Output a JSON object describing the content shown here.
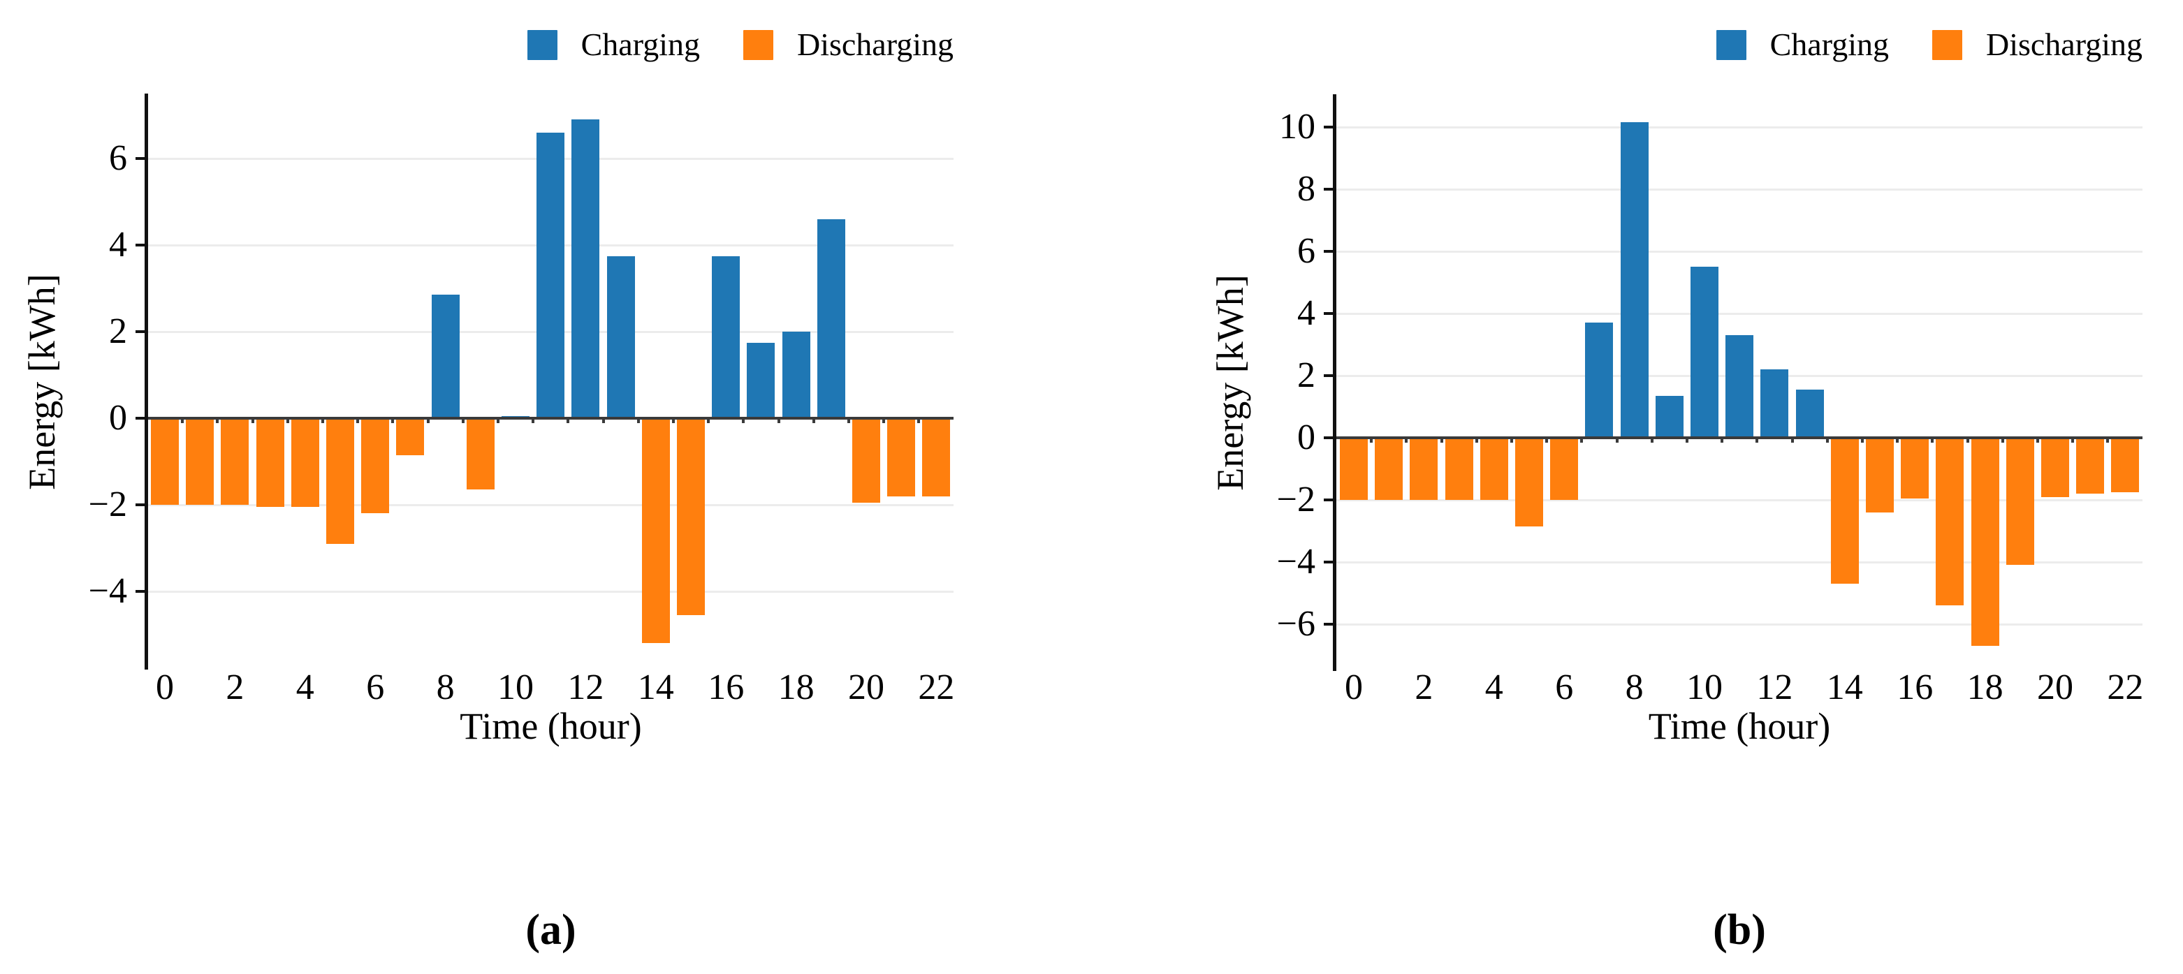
{
  "figure": {
    "background": "#ffffff",
    "colors": {
      "charging": "#1f77b4",
      "discharging": "#ff7f0e",
      "zero_line": "#3a3a3a",
      "gridline": "#ececec",
      "spine": "#111111",
      "text": "#000000"
    }
  },
  "chart_data": [
    {
      "id": "a",
      "type": "bar",
      "caption": "(a)",
      "xlabel": "Time (hour)",
      "ylabel": "Energy [kWh]",
      "legend": [
        "Charging",
        "Discharging"
      ],
      "legend_position": "upper-right",
      "grid": "horizontal",
      "series_rule": "positive values = Charging (blue), negative values = Discharging (orange)",
      "x": [
        0,
        1,
        2,
        3,
        4,
        5,
        6,
        7,
        8,
        9,
        10,
        11,
        12,
        13,
        14,
        15,
        16,
        17,
        18,
        19,
        20,
        21,
        22
      ],
      "values": [
        -2.0,
        -2.0,
        -2.0,
        -2.05,
        -2.05,
        -2.9,
        -2.2,
        -0.85,
        2.85,
        -1.65,
        0.05,
        6.6,
        6.9,
        3.75,
        -5.2,
        -4.55,
        3.75,
        1.75,
        2.0,
        4.6,
        -1.95,
        -1.8,
        -1.8
      ],
      "x_ticks": [
        0,
        2,
        4,
        6,
        8,
        10,
        12,
        14,
        16,
        18,
        20,
        22
      ],
      "x_tick_labels": [
        "0",
        "2",
        "4",
        "6",
        "8",
        "10",
        "12",
        "14",
        "16",
        "18",
        "20",
        "22"
      ],
      "y_ticks": [
        6,
        4,
        2,
        0,
        -2,
        -4
      ],
      "y_tick_labels": [
        "6",
        "4",
        "2",
        "0",
        "−2",
        "−4"
      ],
      "ylim": [
        -5.81,
        7.5
      ],
      "xlim": [
        -0.5,
        22.5
      ]
    },
    {
      "id": "b",
      "type": "bar",
      "caption": "(b)",
      "xlabel": "Time (hour)",
      "ylabel": "Energy [kWh]",
      "legend": [
        "Charging",
        "Discharging"
      ],
      "legend_position": "upper-right",
      "grid": "horizontal",
      "series_rule": "positive values = Charging (blue), negative values = Discharging (orange)",
      "x": [
        0,
        1,
        2,
        3,
        4,
        5,
        6,
        7,
        8,
        9,
        10,
        11,
        12,
        13,
        14,
        15,
        16,
        17,
        18,
        19,
        20,
        21,
        22
      ],
      "values": [
        -2.0,
        -2.0,
        -2.0,
        -2.0,
        -2.0,
        -2.85,
        -2.0,
        3.7,
        10.15,
        1.35,
        5.5,
        3.3,
        2.2,
        1.55,
        -4.7,
        -2.4,
        -1.95,
        -5.4,
        -6.7,
        -4.1,
        -1.9,
        -1.8,
        -1.75
      ],
      "x_ticks": [
        0,
        2,
        4,
        6,
        8,
        10,
        12,
        14,
        16,
        18,
        20,
        22
      ],
      "x_tick_labels": [
        "0",
        "2",
        "4",
        "6",
        "8",
        "10",
        "12",
        "14",
        "16",
        "18",
        "20",
        "22"
      ],
      "y_ticks": [
        10,
        8,
        6,
        4,
        2,
        0,
        -2,
        -4,
        -6
      ],
      "y_tick_labels": [
        "10",
        "8",
        "6",
        "4",
        "2",
        "0",
        "−2",
        "−4",
        "−6"
      ],
      "ylim": [
        -7.51,
        11.06
      ],
      "xlim": [
        -0.5,
        22.5
      ]
    }
  ]
}
